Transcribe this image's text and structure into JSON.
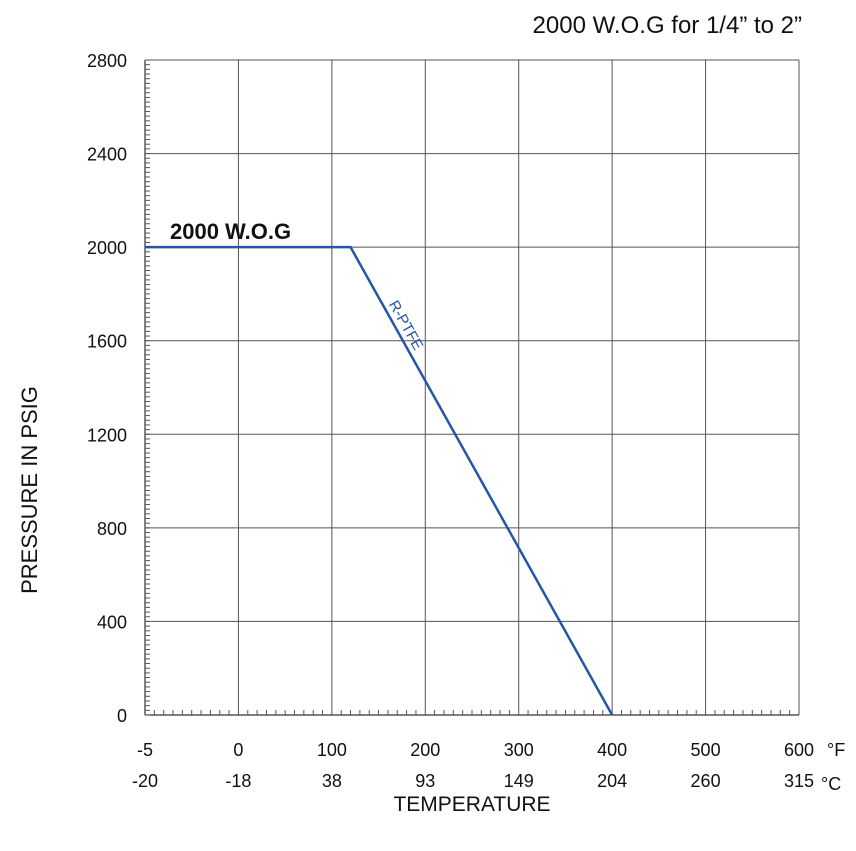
{
  "chart_data": {
    "type": "line",
    "title": "2000 W.O.G for 1/4” to 2”",
    "xlabel": "TEMPERATURE",
    "ylabel": "PRESSURE IN PSIG",
    "ylim": [
      0,
      2800
    ],
    "yticks": [
      0,
      400,
      800,
      1200,
      1600,
      2000,
      2400,
      2800
    ],
    "xticks_f": [
      "-5",
      "0",
      "100",
      "200",
      "300",
      "400",
      "500",
      "600"
    ],
    "xticks_c": [
      "-20",
      "-18",
      "38",
      "93",
      "149",
      "204",
      "260",
      "315"
    ],
    "unit_f": "°F",
    "unit_c": "°C",
    "grid": true,
    "series": [
      {
        "name": "R-PTFE",
        "color": "#2557a7",
        "x": [
          -5,
          120,
          400
        ],
        "y": [
          2000,
          2000,
          0
        ]
      }
    ],
    "annotations": [
      {
        "text": "2000 W.O.G",
        "x": 150,
        "y": 2060,
        "bold": true
      }
    ]
  }
}
